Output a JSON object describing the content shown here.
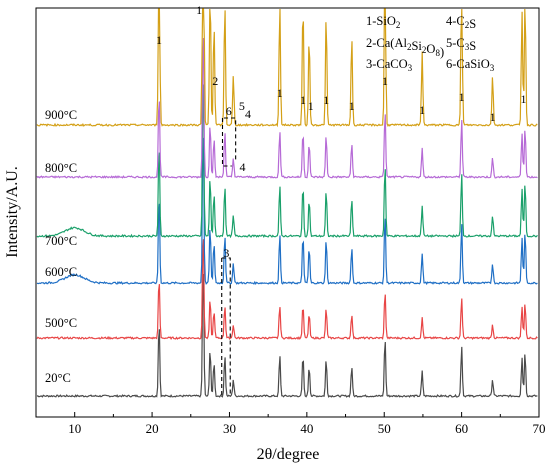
{
  "chart_data": {
    "type": "line",
    "xlabel": "2θ/degree",
    "ylabel": "Intensity/A.U.",
    "xlim": [
      5,
      70
    ],
    "x_ticks": [
      "10",
      "20",
      "30",
      "40",
      "50",
      "60",
      "70"
    ],
    "grid": false,
    "legend": {
      "placement": "top-right",
      "entries": [
        {
          "key": "1",
          "text": "1-SiO",
          "sub": "2",
          "rest": ""
        },
        {
          "key": "2",
          "text": "2-Ca(Al",
          "sub": "2",
          "rest": "Si",
          "sub2": "2",
          "rest2": "O",
          "sub3": "8",
          "rest3": ")"
        },
        {
          "key": "3",
          "text": "3-CaCO",
          "sub": "3",
          "rest": ""
        },
        {
          "key": "4",
          "text": "4-C",
          "sub": "2",
          "rest": "S"
        },
        {
          "key": "5",
          "text": "5-C",
          "sub": "3",
          "rest": "S"
        },
        {
          "key": "6",
          "text": "6-CaSiO",
          "sub": "3",
          "rest": ""
        }
      ]
    },
    "peaks": [
      {
        "x": 20.9,
        "h": 0.55
      },
      {
        "x": 26.6,
        "h": 1.0
      },
      {
        "x": 27.5,
        "h": 0.35
      },
      {
        "x": 28.0,
        "h": 0.25
      },
      {
        "x": 29.4,
        "h": 0.3
      },
      {
        "x": 30.5,
        "h": 0.12
      },
      {
        "x": 36.5,
        "h": 0.3
      },
      {
        "x": 39.5,
        "h": 0.3
      },
      {
        "x": 40.3,
        "h": 0.22
      },
      {
        "x": 42.5,
        "h": 0.27
      },
      {
        "x": 45.8,
        "h": 0.22
      },
      {
        "x": 50.1,
        "h": 0.43
      },
      {
        "x": 54.9,
        "h": 0.18
      },
      {
        "x": 60.0,
        "h": 0.37
      },
      {
        "x": 64.0,
        "h": 0.12
      },
      {
        "x": 67.8,
        "h": 0.28
      },
      {
        "x": 68.2,
        "h": 0.32
      }
    ],
    "series": [
      {
        "name": "20°C",
        "color": "#4a4a4a"
      },
      {
        "name": "500°C",
        "color": "#e84545"
      },
      {
        "name": "600°C",
        "color": "#1f6fc5"
      },
      {
        "name": "700°C",
        "color": "#1aa06a"
      },
      {
        "name": "800°C",
        "color": "#b66ad6"
      },
      {
        "name": "900°C",
        "color": "#d4a017"
      }
    ],
    "peak_labels": [
      {
        "text": "1",
        "x": 20.9
      },
      {
        "text": "1",
        "x": 26.6
      },
      {
        "text": "2",
        "x": 27.9
      },
      {
        "text": "6",
        "x": 29.9
      },
      {
        "text": "5",
        "x": 31.6
      },
      {
        "text": "4",
        "x": 32.4
      },
      {
        "text": "1",
        "x": 36.5
      },
      {
        "text": "1",
        "x": 39.5
      },
      {
        "text": "1",
        "x": 40.5
      },
      {
        "text": "1",
        "x": 42.5
      },
      {
        "text": "1",
        "x": 45.8
      },
      {
        "text": "1",
        "x": 50.1
      },
      {
        "text": "1",
        "x": 54.9
      },
      {
        "text": "1",
        "x": 60.0
      },
      {
        "text": "1",
        "x": 64.0
      },
      {
        "text": "1",
        "x": 68.0
      }
    ],
    "annotation_labels": [
      {
        "text": "4",
        "near": "800°C"
      },
      {
        "text": "3",
        "near": "600°C"
      }
    ]
  }
}
